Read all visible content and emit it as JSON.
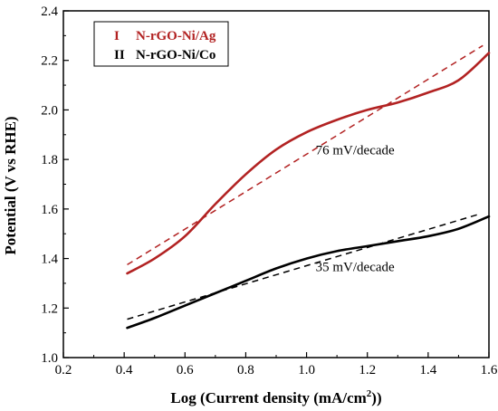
{
  "chart_data": {
    "type": "line",
    "xlabel": "Log (Current density (mA/cm",
    "xlabel_sup": "2",
    "xlabel_end": "))",
    "ylabel": "Potential (V vs RHE)",
    "xlim": [
      0.2,
      1.6
    ],
    "ylim": [
      1.0,
      2.4
    ],
    "x_ticks": [
      "0.2",
      "0.4",
      "0.6",
      "0.8",
      "1.0",
      "1.2",
      "1.4",
      "1.6"
    ],
    "y_ticks": [
      "1.0",
      "1.2",
      "1.4",
      "1.6",
      "1.8",
      "2.0",
      "2.2",
      "2.4"
    ],
    "grid": false,
    "legend_position": "top-left",
    "legend": [
      {
        "roman": "I",
        "name": "N-rGO-Ni/Ag",
        "color": "#b22222"
      },
      {
        "roman": "II",
        "name": "N-rGO-Ni/Co",
        "color": "#000000"
      }
    ],
    "series": [
      {
        "name": "N-rGO-Ni/Ag",
        "color": "#b22222",
        "x": [
          0.41,
          0.5,
          0.6,
          0.7,
          0.8,
          0.9,
          1.0,
          1.1,
          1.2,
          1.3,
          1.4,
          1.5,
          1.6
        ],
        "y": [
          1.34,
          1.4,
          1.49,
          1.62,
          1.74,
          1.84,
          1.91,
          1.96,
          2.0,
          2.03,
          2.07,
          2.12,
          2.23
        ]
      },
      {
        "name": "N-rGO-Ni/Co",
        "color": "#000000",
        "x": [
          0.41,
          0.5,
          0.6,
          0.7,
          0.8,
          0.9,
          1.0,
          1.1,
          1.2,
          1.3,
          1.4,
          1.5,
          1.6
        ],
        "y": [
          1.12,
          1.16,
          1.21,
          1.26,
          1.31,
          1.36,
          1.4,
          1.43,
          1.45,
          1.47,
          1.49,
          1.52,
          1.57
        ]
      }
    ],
    "fits": [
      {
        "color": "#b22222",
        "x": [
          0.41,
          1.58
        ],
        "y": [
          1.375,
          2.26
        ]
      },
      {
        "color": "#000000",
        "x": [
          0.41,
          1.57
        ],
        "y": [
          1.155,
          1.58
        ]
      }
    ],
    "annotations": [
      {
        "text": "76 mV/decade",
        "x": 1.03,
        "y": 1.82
      },
      {
        "text": "35 mV/decade",
        "x": 1.03,
        "y": 1.35
      }
    ]
  }
}
